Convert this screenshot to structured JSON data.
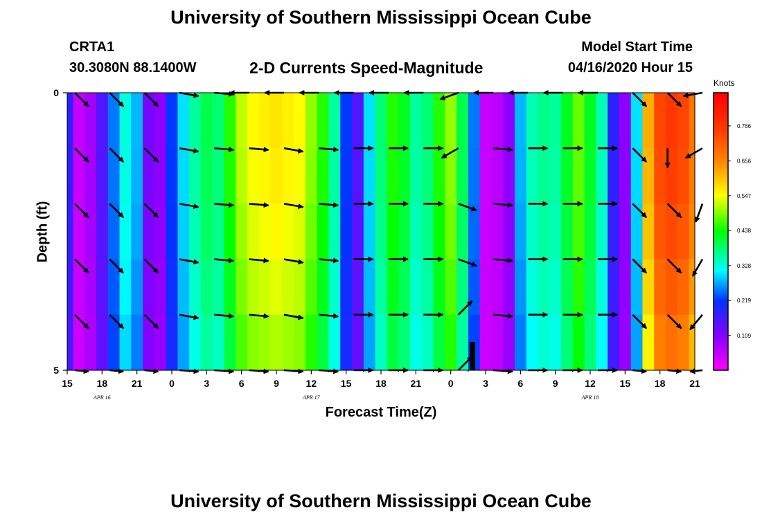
{
  "header": {
    "title": "University of Southern Mississippi Ocean Cube",
    "station": "CRTA1",
    "coords": "30.3080N 88.1400W",
    "plot_title": "2-D Currents Speed-Magnitude",
    "model_start_label": "Model Start Time",
    "model_start_value": "04/16/2020 Hour 15"
  },
  "footer": {
    "title": "University of Southern Mississippi Ocean Cube"
  },
  "colors": {
    "arrow": "#000000"
  },
  "chart_data": {
    "type": "heatmap",
    "title": "2-D Currents Speed-Magnitude",
    "xlabel": "Forecast Time(Z)",
    "ylabel": "Depth (ft)",
    "ylim": [
      0,
      5
    ],
    "x_tick_labels": [
      "15",
      "18",
      "21",
      "0",
      "3",
      "6",
      "9",
      "12",
      "15",
      "18",
      "21",
      "0",
      "3",
      "6",
      "9",
      "12",
      "15",
      "18",
      "21"
    ],
    "date_labels": [
      {
        "label": "APR 16",
        "tick_index": 1
      },
      {
        "label": "APR 17",
        "tick_index": 7
      },
      {
        "label": "APR 18",
        "tick_index": 15
      }
    ],
    "y_tick_labels": [
      "0",
      "5"
    ],
    "colorbar": {
      "units": "Knots",
      "range": [
        0,
        0.87
      ],
      "ticks": [
        0.109,
        0.219,
        0.328,
        0.438,
        0.547,
        0.656,
        0.766
      ],
      "tick_labels": [
        "0.109",
        "0.219",
        "0.328",
        "0.438",
        "0.547",
        "0.656",
        "0.766"
      ]
    },
    "hours": [
      0,
      1,
      2,
      3,
      4,
      5,
      6,
      7,
      8,
      9,
      10,
      11,
      12,
      13,
      14,
      15,
      16,
      17,
      18,
      19,
      20,
      21,
      22,
      23,
      24,
      25,
      26,
      27,
      28,
      29,
      30,
      31,
      32,
      33,
      34,
      35,
      36,
      37,
      38,
      39,
      40,
      41,
      42,
      43,
      44,
      45,
      46,
      47,
      48,
      49,
      50,
      51,
      52,
      53,
      54
    ],
    "speed_column_profile": [
      0.18,
      0.05,
      0.08,
      0.15,
      0.25,
      0.33,
      0.28,
      0.12,
      0.1,
      0.22,
      0.3,
      0.36,
      0.4,
      0.38,
      0.45,
      0.52,
      0.55,
      0.56,
      0.57,
      0.56,
      0.55,
      0.5,
      0.45,
      0.36,
      0.22,
      0.15,
      0.3,
      0.38,
      0.45,
      0.42,
      0.36,
      0.38,
      0.45,
      0.5,
      0.4,
      0.25,
      0.05,
      0.06,
      0.1,
      0.28,
      0.35,
      0.37,
      0.36,
      0.42,
      0.48,
      0.42,
      0.35,
      0.18,
      0.1,
      0.3,
      0.62,
      0.74,
      0.76,
      0.74,
      0.68
    ],
    "speed_depth_factor": [
      1.0,
      0.99,
      0.97,
      0.94,
      0.9
    ],
    "vectors": {
      "hours": [
        0,
        3,
        6,
        9,
        12,
        15,
        18,
        21,
        24,
        27,
        30,
        33,
        36,
        39,
        42,
        45,
        48,
        51,
        54
      ],
      "depth_levels": [
        0,
        1,
        2,
        3,
        4,
        5
      ],
      "direction_deg": [
        [
          135,
          135,
          135,
          100,
          95,
          270,
          270,
          270,
          270,
          270,
          270,
          250,
          270,
          270,
          270,
          270,
          135,
          135,
          260
        ],
        [
          135,
          135,
          135,
          100,
          95,
          95,
          100,
          95,
          90,
          90,
          90,
          240,
          95,
          90,
          90,
          90,
          135,
          180,
          240
        ],
        [
          135,
          135,
          135,
          100,
          95,
          95,
          100,
          95,
          90,
          90,
          90,
          110,
          95,
          90,
          90,
          90,
          135,
          135,
          200
        ],
        [
          135,
          135,
          135,
          100,
          95,
          95,
          100,
          95,
          90,
          90,
          90,
          110,
          95,
          90,
          90,
          90,
          135,
          135,
          210
        ],
        [
          135,
          135,
          135,
          100,
          95,
          95,
          100,
          95,
          90,
          90,
          90,
          45,
          95,
          90,
          90,
          90,
          135,
          135,
          220
        ],
        [
          135,
          135,
          135,
          100,
          95,
          95,
          100,
          95,
          90,
          90,
          90,
          45,
          95,
          90,
          90,
          90,
          135,
          135,
          220
        ]
      ]
    }
  }
}
